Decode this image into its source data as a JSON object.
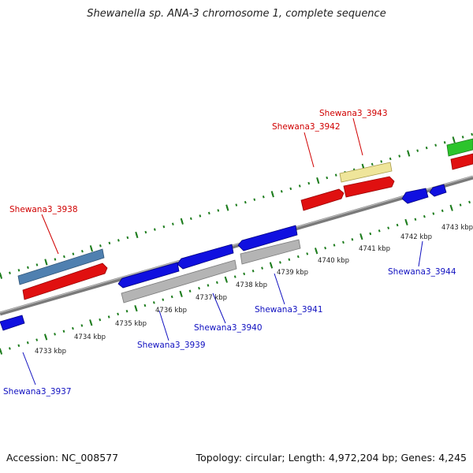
{
  "title": "Shewanella sp. ANA-3 chromosome 1, complete sequence",
  "footer": {
    "accession": "Accession: NC_008577",
    "summary": "Topology: circular; Length: 4,972,204 bp; Genes: 4,245"
  },
  "colors": {
    "backbone": "#8c8c8c",
    "tick": "#1e7d1e",
    "cds_forward": "#e01010",
    "cds_reverse": "#1010e0",
    "gene_grey": "#b4b4b4",
    "gene_steelblue": "#4f80b0",
    "gene_pale_yellow": "#efe59a",
    "gene_green": "#2cc42c",
    "label_forward": "#d00000",
    "label_reverse": "#1010c0"
  },
  "scale_labels": [
    "4733 kbp",
    "4734 kbp",
    "4735 kbp",
    "4736 kbp",
    "4737 kbp",
    "4738 kbp",
    "4739 kbp",
    "4740 kbp",
    "4741 kbp",
    "4742 kbp",
    "4743 kbp"
  ],
  "gene_labels": [
    {
      "name": "Shewana3_3937",
      "strand": "reverse"
    },
    {
      "name": "Shewana3_3938",
      "strand": "forward"
    },
    {
      "name": "Shewana3_3939",
      "strand": "reverse"
    },
    {
      "name": "Shewana3_3940",
      "strand": "reverse"
    },
    {
      "name": "Shewana3_3941",
      "strand": "reverse"
    },
    {
      "name": "Shewana3_3942",
      "strand": "forward"
    },
    {
      "name": "Shewana3_3943",
      "strand": "forward"
    },
    {
      "name": "Shewana3_3944",
      "strand": "reverse"
    }
  ]
}
